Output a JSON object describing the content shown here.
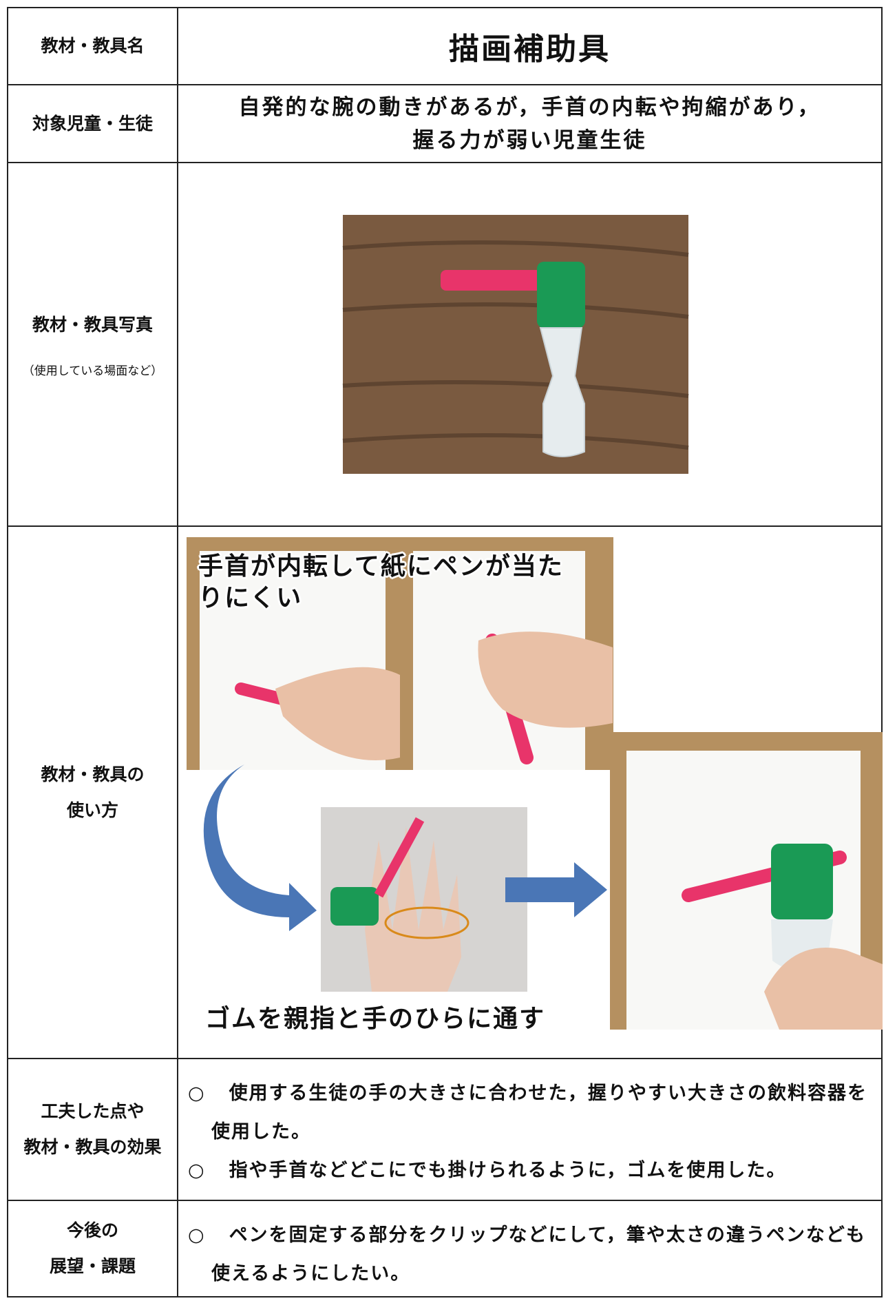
{
  "table": {
    "rows": [
      {
        "label": [
          "教材・教具名"
        ],
        "content": [
          "描画補助具"
        ]
      },
      {
        "label": [
          "対象児童・生徒"
        ],
        "content": [
          "自発的な腕の動きがあるが，手首の内転や拘縮があり，",
          "握る力が弱い児童生徒"
        ]
      },
      {
        "label": [
          "教材・教具写真"
        ],
        "note": "（使用している場面など）"
      },
      {
        "label": [
          "教材・教具の",
          "使い方"
        ],
        "captions": [
          "手首が内転して紙にペンが当たりにくい",
          "ゴムを親指と手のひらに通す"
        ]
      },
      {
        "label": [
          "工夫した点や",
          "教材・教具の効果"
        ],
        "items": [
          {
            "marker": "○",
            "text": "使用する生徒の手の大きさに合わせた，握りやすい大きさの飲料容器を使用した。"
          },
          {
            "marker": "○",
            "text": "指や手首などどこにでも掛けられるように，ゴムを使用した。"
          }
        ]
      },
      {
        "label": [
          "今後の",
          "展望・課題"
        ],
        "items": [
          {
            "marker": "○",
            "text": "ペンを固定する部分をクリップなどにして，筆や太さの違うペンなども使えるようにしたい。"
          }
        ]
      }
    ]
  }
}
